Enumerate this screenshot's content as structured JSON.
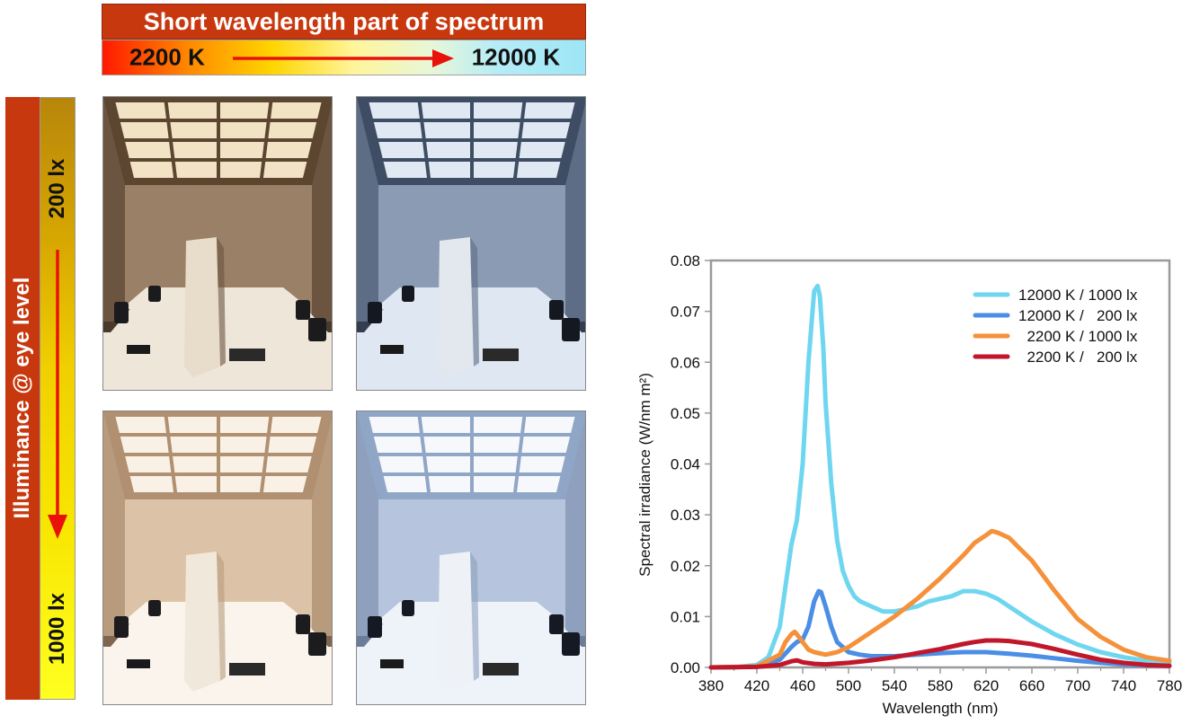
{
  "header": {
    "title": "Short wavelength part of spectrum",
    "left_label": "2200 K",
    "right_label": "12000 K"
  },
  "side": {
    "label": "Illuminance @ eye level",
    "top_label": "200 lx",
    "bottom_label": "1000 lx"
  },
  "photos": [
    {
      "cct": "2200 K",
      "illuminance": "200 lx",
      "tone": "warm-dim"
    },
    {
      "cct": "12000 K",
      "illuminance": "200 lx",
      "tone": "cool-dim"
    },
    {
      "cct": "2200 K",
      "illuminance": "1000 lx",
      "tone": "warm-bright"
    },
    {
      "cct": "12000 K",
      "illuminance": "1000 lx",
      "tone": "cool-bright"
    }
  ],
  "colors": {
    "banner_red": "#c8380e",
    "series_12000_1000": "#6fd6f0",
    "series_12000_200": "#4a8ee6",
    "series_2200_1000": "#f5913a",
    "series_2200_200": "#c0172b"
  },
  "chart_data": {
    "type": "line",
    "xlabel": "Wavelength (nm)",
    "ylabel": "Spectral irradiance (W/nm m²)",
    "xlim": [
      380,
      780
    ],
    "ylim": [
      0,
      0.08
    ],
    "xticks": [
      "380",
      "420",
      "460",
      "500",
      "540",
      "580",
      "620",
      "660",
      "700",
      "740",
      "780"
    ],
    "yticks": [
      "0.00",
      "0.01",
      "0.02",
      "0.03",
      "0.04",
      "0.05",
      "0.06",
      "0.07",
      "0.08"
    ],
    "legend_position": "top-right",
    "grid": false,
    "series": [
      {
        "name": "12000 K / 1000 lx",
        "color": "#6fd6f0",
        "x": [
          380,
          400,
          420,
          430,
          440,
          445,
          450,
          455,
          460,
          465,
          470,
          473,
          475,
          478,
          480,
          485,
          490,
          495,
          500,
          505,
          510,
          520,
          530,
          540,
          550,
          560,
          570,
          580,
          590,
          600,
          610,
          620,
          630,
          640,
          650,
          660,
          680,
          700,
          720,
          740,
          760,
          780
        ],
        "y": [
          0.0,
          0.0,
          0.0005,
          0.002,
          0.008,
          0.016,
          0.024,
          0.029,
          0.04,
          0.06,
          0.074,
          0.075,
          0.073,
          0.063,
          0.052,
          0.036,
          0.025,
          0.019,
          0.016,
          0.014,
          0.013,
          0.012,
          0.011,
          0.011,
          0.0115,
          0.012,
          0.013,
          0.0135,
          0.014,
          0.015,
          0.015,
          0.0145,
          0.0135,
          0.012,
          0.0105,
          0.009,
          0.0065,
          0.0045,
          0.003,
          0.002,
          0.0013,
          0.0008
        ]
      },
      {
        "name": "12000 K /   200 lx",
        "color": "#4a8ee6",
        "x": [
          380,
          420,
          440,
          450,
          455,
          460,
          465,
          470,
          474,
          476,
          480,
          485,
          490,
          500,
          510,
          520,
          540,
          560,
          580,
          600,
          620,
          640,
          660,
          680,
          700,
          720,
          740,
          760,
          780
        ],
        "y": [
          0.0,
          0.0001,
          0.0015,
          0.004,
          0.005,
          0.0055,
          0.008,
          0.013,
          0.015,
          0.0148,
          0.012,
          0.008,
          0.005,
          0.003,
          0.0025,
          0.0022,
          0.0022,
          0.0025,
          0.0028,
          0.003,
          0.003,
          0.0027,
          0.0023,
          0.0018,
          0.0013,
          0.0009,
          0.0006,
          0.0004,
          0.0003
        ]
      },
      {
        "name": "  2200 K / 1000 lx",
        "color": "#f5913a",
        "x": [
          380,
          420,
          440,
          445,
          450,
          453,
          455,
          460,
          465,
          470,
          480,
          490,
          500,
          510,
          520,
          540,
          560,
          580,
          600,
          610,
          620,
          625,
          630,
          640,
          660,
          680,
          700,
          720,
          740,
          760,
          780
        ],
        "y": [
          0.0,
          0.0002,
          0.0025,
          0.005,
          0.0065,
          0.007,
          0.0065,
          0.005,
          0.0035,
          0.003,
          0.0025,
          0.003,
          0.004,
          0.0055,
          0.007,
          0.01,
          0.0135,
          0.0175,
          0.022,
          0.0245,
          0.026,
          0.0268,
          0.0265,
          0.0255,
          0.021,
          0.015,
          0.0095,
          0.006,
          0.0035,
          0.002,
          0.0013
        ]
      },
      {
        "name": "  2200 K /   200 lx",
        "color": "#c0172b",
        "x": [
          380,
          420,
          440,
          450,
          455,
          460,
          470,
          480,
          500,
          520,
          540,
          560,
          580,
          600,
          610,
          620,
          630,
          640,
          660,
          680,
          700,
          720,
          740,
          760,
          780
        ],
        "y": [
          0.0,
          0.0001,
          0.0005,
          0.0012,
          0.0014,
          0.001,
          0.0007,
          0.0006,
          0.0009,
          0.0014,
          0.002,
          0.0028,
          0.0036,
          0.0046,
          0.005,
          0.0053,
          0.0053,
          0.0052,
          0.0046,
          0.0036,
          0.0025,
          0.0015,
          0.0009,
          0.0005,
          0.0003
        ]
      }
    ]
  }
}
